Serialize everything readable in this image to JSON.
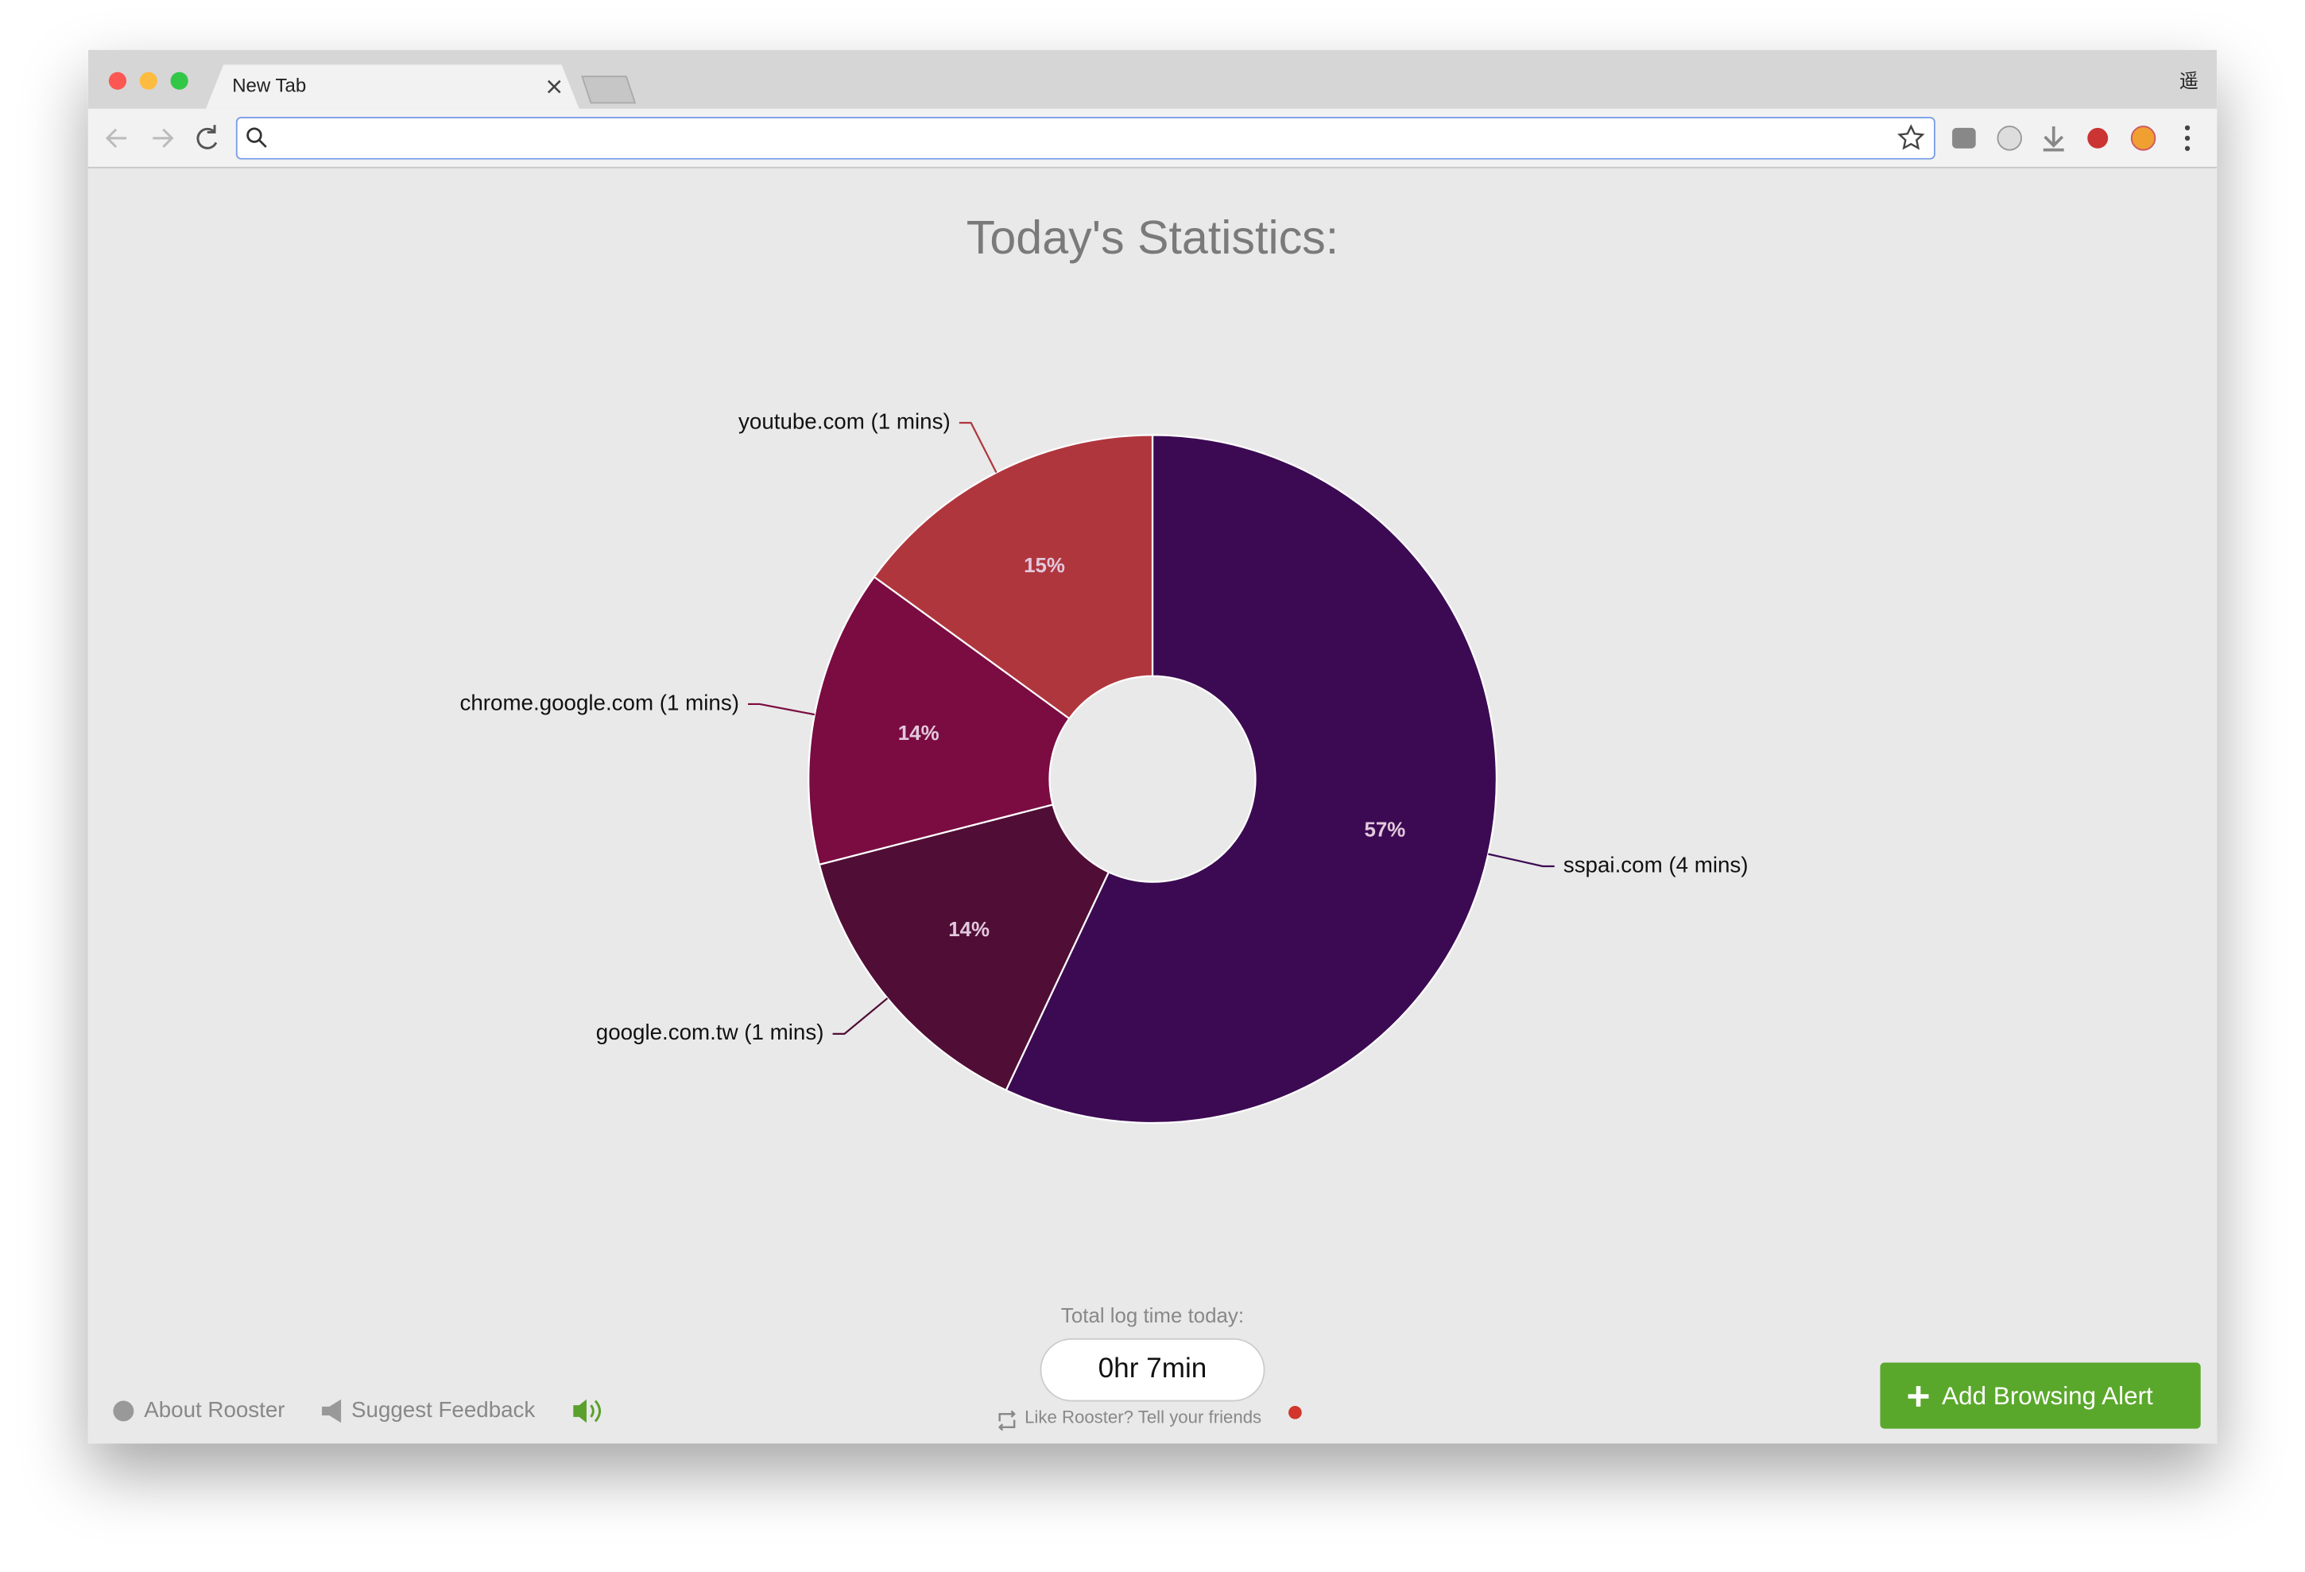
{
  "browser": {
    "tab_title": "New Tab",
    "profile": "遥"
  },
  "heading": "Today's Statistics:",
  "chart_data": {
    "type": "pie",
    "donut": true,
    "categories": [
      "sspai.com (4 mins)",
      "google.com.tw (1 mins)",
      "chrome.google.com (1 mins)",
      "youtube.com (1 mins)"
    ],
    "values": [
      57,
      14,
      14,
      15
    ],
    "value_labels": [
      "57%",
      "14%",
      "14%",
      "15%"
    ],
    "colors": [
      "#3c0a53",
      "#500e36",
      "#7a0c42",
      "#b0363e"
    ]
  },
  "summary": {
    "label": "Total log time today:",
    "value": "0hr 7min",
    "share": "Like Rooster? Tell your friends"
  },
  "footer": {
    "about": "About Rooster",
    "feedback": "Suggest Feedback",
    "button": "Add Browsing Alert"
  }
}
